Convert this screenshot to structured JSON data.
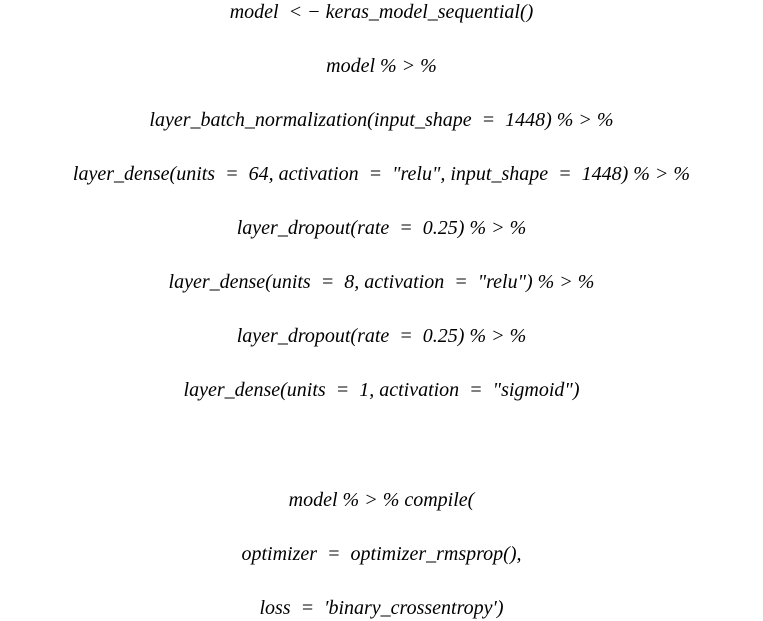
{
  "lines": [
    "model  < − keras_model_sequential()",
    "model % > %",
    "layer_batch_normalization(input_shape  =  1448) % > %",
    "layer_dense(units  =  64, activation  =  \"relu\", input_shape  =  1448) % > %",
    "layer_dropout(rate  =  0.25) % > %",
    "layer_dense(units  =  8, activation  =  \"relu\") % > %",
    "layer_dropout(rate  =  0.25) % > %",
    "layer_dense(units  =  1, activation  =  \"sigmoid\")",
    "model % > % compile(",
    "optimizer  =  optimizer_rmsprop(),",
    "loss  =  ′binary_crossentropy′)"
  ]
}
